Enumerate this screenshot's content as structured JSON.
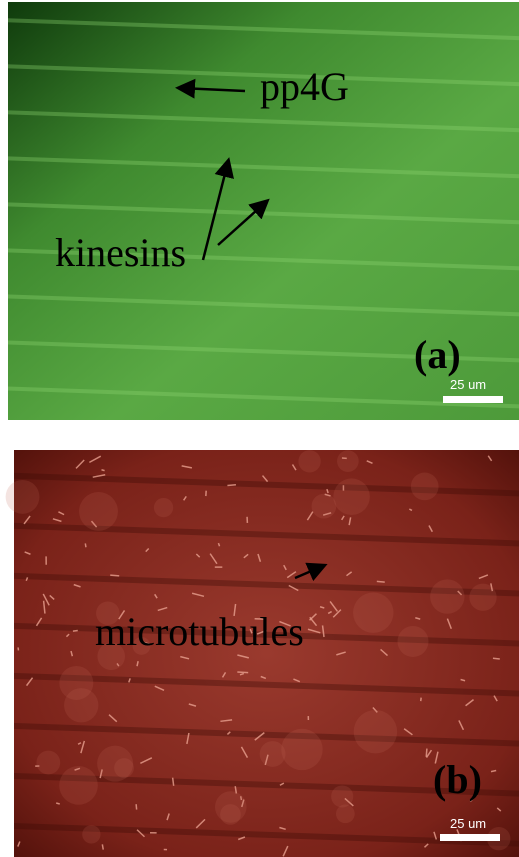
{
  "panels": [
    {
      "label": "(a)",
      "annotations": [
        "pp4G",
        "kinesins"
      ],
      "scale_bar": "25 um"
    },
    {
      "label": "(b)",
      "annotations": [
        "microtubules"
      ],
      "scale_bar": "25 um"
    }
  ]
}
